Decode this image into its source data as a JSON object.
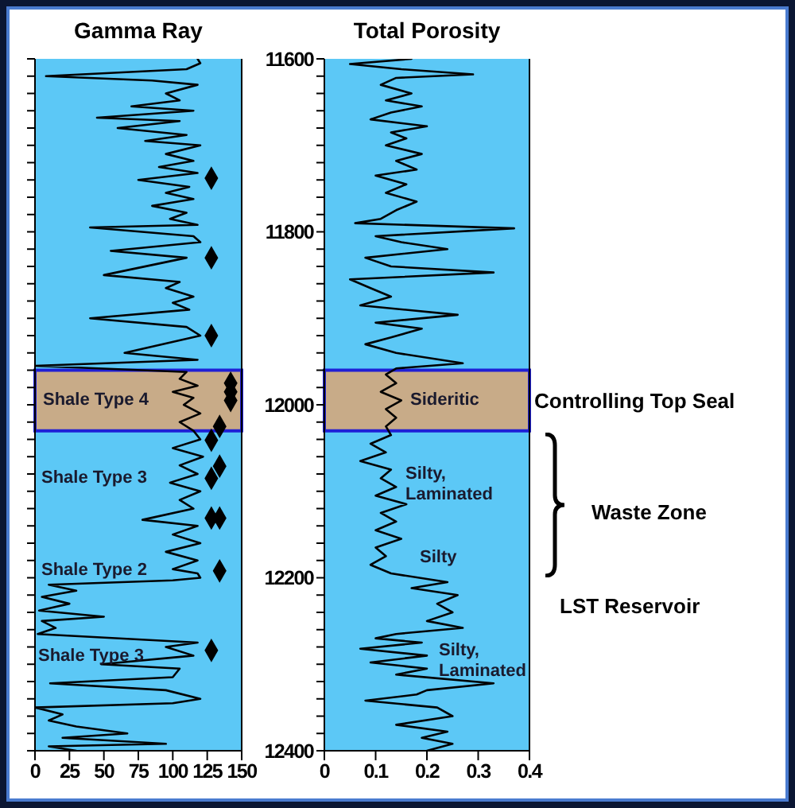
{
  "chart_data": [
    {
      "type": "line",
      "title": "Gamma Ray",
      "orientation": "horizontal",
      "tick_labels": "x",
      "xlim": [
        0,
        150
      ],
      "xticks": [
        0,
        25,
        50,
        75,
        100,
        125,
        150
      ],
      "ylim": [
        12400,
        11600
      ],
      "yticks": [
        11600,
        {
          "value": 11620,
          "label": null
        },
        {
          "value": 11640,
          "label": null
        },
        {
          "value": 11660,
          "label": null
        },
        {
          "value": 11680,
          "label": null
        },
        {
          "value": 11700,
          "label": null
        },
        {
          "value": 11720,
          "label": null
        },
        {
          "value": 11740,
          "label": null
        },
        {
          "value": 11760,
          "label": null
        },
        {
          "value": 11780,
          "label": null
        },
        11800,
        {
          "value": 11820,
          "label": null
        },
        {
          "value": 11840,
          "label": null
        },
        {
          "value": 11860,
          "label": null
        },
        {
          "value": 11880,
          "label": null
        },
        {
          "value": 11900,
          "label": null
        },
        {
          "value": 11920,
          "label": null
        },
        {
          "value": 11940,
          "label": null
        },
        {
          "value": 11960,
          "label": null
        },
        {
          "value": 11980,
          "label": null
        },
        12000,
        {
          "value": 12020,
          "label": null
        },
        {
          "value": 12040,
          "label": null
        },
        {
          "value": 12060,
          "label": null
        },
        {
          "value": 12080,
          "label": null
        },
        {
          "value": 12100,
          "label": null
        },
        {
          "value": 12120,
          "label": null
        },
        {
          "value": 12140,
          "label": null
        },
        {
          "value": 12160,
          "label": null
        },
        {
          "value": 12180,
          "label": null
        },
        12200,
        {
          "value": 12220,
          "label": null
        },
        {
          "value": 12240,
          "label": null
        },
        {
          "value": 12260,
          "label": null
        },
        {
          "value": 12280,
          "label": null
        },
        {
          "value": 12300,
          "label": null
        },
        {
          "value": 12320,
          "label": null
        },
        {
          "value": 12340,
          "label": null
        },
        {
          "value": 12360,
          "label": null
        },
        {
          "value": 12380,
          "label": null
        },
        12400
      ],
      "series": [
        {
          "type": "line",
          "color": "#000000",
          "x": [
            11600,
            11605,
            11612,
            11620,
            11625,
            11630,
            11640,
            11648,
            11655,
            11660,
            11668,
            11672,
            11680,
            11688,
            11695,
            11700,
            11710,
            11718,
            11725,
            11732,
            11740,
            11748,
            11755,
            11762,
            11770,
            11778,
            11785,
            11792,
            11795,
            11805,
            11812,
            11822,
            11830,
            11850,
            11858,
            11865,
            11875,
            11882,
            11890,
            11900,
            11910,
            11920,
            11940,
            11948,
            11955,
            11962,
            11970,
            11978,
            11985,
            11992,
            12000,
            12010,
            12020,
            12030,
            12040,
            12050,
            12060,
            12070,
            12080,
            12090,
            12100,
            12110,
            12120,
            12133,
            12140,
            12150,
            12160,
            12170,
            12180,
            12190,
            12195,
            12200,
            12203,
            12208,
            12215,
            12222,
            12230,
            12238,
            12245,
            12250,
            12258,
            12265,
            12275,
            12280,
            12290,
            12300,
            12305,
            12315,
            12322,
            12330,
            12340,
            12345,
            12350,
            12358,
            12365,
            12372,
            12380,
            12385,
            12392,
            12395,
            12400
          ],
          "values": [
            118,
            120,
            110,
            8,
            85,
            118,
            95,
            105,
            70,
            115,
            45,
            105,
            60,
            110,
            80,
            120,
            95,
            115,
            90,
            118,
            75,
            112,
            95,
            115,
            85,
            110,
            98,
            118,
            40,
            115,
            120,
            55,
            110,
            50,
            105,
            95,
            115,
            100,
            112,
            40,
            110,
            120,
            65,
            118,
            0,
            110,
            105,
            118,
            100,
            115,
            108,
            120,
            105,
            115,
            120,
            100,
            122,
            105,
            118,
            98,
            120,
            105,
            115,
            78,
            118,
            100,
            120,
            95,
            118,
            100,
            118,
            120,
            100,
            10,
            30,
            5,
            25,
            3,
            50,
            5,
            15,
            2,
            118,
            95,
            115,
            48,
            105,
            100,
            11,
            95,
            120,
            100,
            0,
            20,
            10,
            30,
            67,
            20,
            95,
            10,
            30
          ]
        },
        {
          "type": "scatter",
          "color": "#000000",
          "marker": "diamond",
          "x": [
            11738,
            11830,
            11920,
            11975,
            11985,
            11995,
            12025,
            12041,
            12071,
            12085,
            12131,
            12131,
            12192,
            12284
          ],
          "values": [
            128,
            128,
            128,
            142,
            142,
            142,
            134,
            128,
            134,
            128,
            128,
            134,
            134,
            128
          ]
        }
      ],
      "bands": [
        {
          "axis": "y",
          "from": 11960,
          "to": 12030,
          "color": "#c8ab88"
        }
      ],
      "annotations": [
        "Shale Type 4",
        "Shale Type 3",
        "Shale Type 2",
        "Shale Type 3"
      ]
    },
    {
      "type": "line",
      "title": "Total Porosity",
      "orientation": "horizontal",
      "xlim": [
        0,
        0.4
      ],
      "xticks": [
        0,
        0.1,
        0.2,
        0.3,
        0.4
      ],
      "ylim": [
        12400,
        11600
      ],
      "yticks": [
        11600,
        {
          "value": 11620,
          "label": null
        },
        {
          "value": 11640,
          "label": null
        },
        {
          "value": 11660,
          "label": null
        },
        {
          "value": 11680,
          "label": null
        },
        {
          "value": 11700,
          "label": null
        },
        {
          "value": 11720,
          "label": null
        },
        {
          "value": 11740,
          "label": null
        },
        {
          "value": 11760,
          "label": null
        },
        {
          "value": 11780,
          "label": null
        },
        11800,
        {
          "value": 11820,
          "label": null
        },
        {
          "value": 11840,
          "label": null
        },
        {
          "value": 11860,
          "label": null
        },
        {
          "value": 11880,
          "label": null
        },
        {
          "value": 11900,
          "label": null
        },
        {
          "value": 11920,
          "label": null
        },
        {
          "value": 11940,
          "label": null
        },
        {
          "value": 11960,
          "label": null
        },
        {
          "value": 11980,
          "label": null
        },
        12000,
        {
          "value": 12020,
          "label": null
        },
        {
          "value": 12040,
          "label": null
        },
        {
          "value": 12060,
          "label": null
        },
        {
          "value": 12080,
          "label": null
        },
        {
          "value": 12100,
          "label": null
        },
        {
          "value": 12120,
          "label": null
        },
        {
          "value": 12140,
          "label": null
        },
        {
          "value": 12160,
          "label": null
        },
        {
          "value": 12180,
          "label": null
        },
        12200,
        {
          "value": 12220,
          "label": null
        },
        {
          "value": 12240,
          "label": null
        },
        {
          "value": 12260,
          "label": null
        },
        {
          "value": 12280,
          "label": null
        },
        {
          "value": 12300,
          "label": null
        },
        {
          "value": 12320,
          "label": null
        },
        {
          "value": 12340,
          "label": null
        },
        {
          "value": 12360,
          "label": null
        },
        {
          "value": 12380,
          "label": null
        },
        12400
      ],
      "series": [
        {
          "type": "line",
          "color": "#000000",
          "x": [
            11600,
            11606,
            11612,
            11618,
            11622,
            11630,
            11640,
            11648,
            11655,
            11662,
            11670,
            11678,
            11685,
            11692,
            11700,
            11710,
            11718,
            11728,
            11735,
            11745,
            11755,
            11765,
            11775,
            11785,
            11790,
            11796,
            11805,
            11812,
            11820,
            11830,
            11840,
            11847,
            11855,
            11865,
            11875,
            11885,
            11896,
            11905,
            11912,
            11922,
            11930,
            11940,
            11952,
            11958,
            11965,
            11975,
            11985,
            11995,
            12005,
            12015,
            12025,
            12035,
            12045,
            12055,
            12065,
            12075,
            12085,
            12095,
            12105,
            12115,
            12125,
            12135,
            12145,
            12155,
            12165,
            12175,
            12185,
            12195,
            12205,
            12212,
            12220,
            12230,
            12240,
            12250,
            12258,
            12265,
            12270,
            12275,
            12282,
            12290,
            12298,
            12305,
            12312,
            12322,
            12330,
            12335,
            12342,
            12350,
            12360,
            12370,
            12378,
            12385,
            12392,
            12400
          ],
          "values": [
            0.17,
            0.05,
            0.15,
            0.29,
            0.14,
            0.11,
            0.17,
            0.12,
            0.19,
            0.13,
            0.09,
            0.2,
            0.13,
            0.16,
            0.12,
            0.19,
            0.14,
            0.18,
            0.1,
            0.16,
            0.12,
            0.18,
            0.14,
            0.11,
            0.06,
            0.37,
            0.1,
            0.15,
            0.24,
            0.08,
            0.13,
            0.33,
            0.05,
            0.09,
            0.13,
            0.07,
            0.26,
            0.1,
            0.19,
            0.13,
            0.08,
            0.14,
            0.27,
            0.14,
            0.12,
            0.14,
            0.11,
            0.15,
            0.12,
            0.14,
            0.12,
            0.13,
            0.09,
            0.12,
            0.07,
            0.13,
            0.11,
            0.14,
            0.1,
            0.16,
            0.11,
            0.14,
            0.1,
            0.15,
            0.1,
            0.12,
            0.09,
            0.13,
            0.24,
            0.17,
            0.26,
            0.22,
            0.25,
            0.2,
            0.27,
            0.14,
            0.1,
            0.19,
            0.07,
            0.2,
            0.09,
            0.2,
            0.14,
            0.33,
            0.2,
            0.18,
            0.08,
            0.22,
            0.25,
            0.14,
            0.24,
            0.19,
            0.25,
            0.2
          ]
        }
      ],
      "bands": [
        {
          "axis": "y",
          "from": 11960,
          "to": 12030,
          "color": "#c8ab88",
          "label": "Controlling Top Seal"
        }
      ],
      "annotations": [
        "Sideritic",
        "Silty, Laminated",
        "Silty",
        "Silty, Laminated",
        "Waste Zone",
        "LST Reservoir"
      ]
    }
  ]
}
